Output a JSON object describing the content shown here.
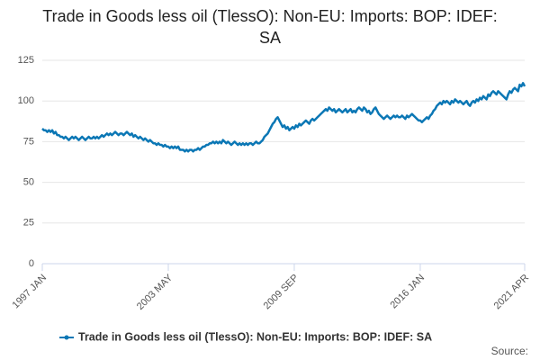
{
  "chart_data": {
    "type": "line",
    "title": "Trade in Goods less oil (TlessO): Non-EU: Imports: BOP: IDEF: SA",
    "source_label": "Source:",
    "categories": [
      "1997 JAN",
      null,
      null,
      null,
      null,
      null,
      null,
      null,
      null,
      null,
      null,
      null,
      null,
      null,
      null,
      null,
      null,
      null,
      null,
      null,
      null,
      null,
      null,
      null,
      null,
      null,
      null,
      null,
      null,
      null,
      null,
      null,
      null,
      null,
      null,
      null,
      null,
      null,
      null,
      null,
      null,
      null,
      null,
      null,
      null,
      null,
      null,
      null,
      null,
      null,
      null,
      null,
      null,
      null,
      null,
      null,
      null,
      null,
      null,
      null,
      null,
      null,
      null,
      null,
      null,
      null,
      null,
      null,
      null,
      null,
      null,
      null,
      null,
      null,
      null,
      null,
      "2003 MAY",
      null,
      null,
      null,
      null,
      null,
      null,
      null,
      null,
      null,
      null,
      null,
      null,
      null,
      null,
      null,
      null,
      null,
      null,
      null,
      null,
      null,
      null,
      null,
      null,
      null,
      null,
      null,
      null,
      null,
      null,
      null,
      null,
      null,
      null,
      null,
      null,
      null,
      null,
      null,
      null,
      null,
      null,
      null,
      null,
      null,
      null,
      null,
      null,
      null,
      null,
      null,
      null,
      null,
      null,
      null,
      null,
      null,
      null,
      null,
      null,
      null,
      null,
      null,
      null,
      null,
      null,
      null,
      null,
      null,
      null,
      null,
      null,
      null,
      null,
      null,
      "2009 SEP",
      null,
      null,
      null,
      null,
      null,
      null,
      null,
      null,
      null,
      null,
      null,
      null,
      null,
      null,
      null,
      null,
      null,
      null,
      null,
      null,
      null,
      null,
      null,
      null,
      null,
      null,
      null,
      null,
      null,
      null,
      null,
      null,
      null,
      null,
      null,
      null,
      null,
      null,
      null,
      null,
      null,
      null,
      null,
      null,
      null,
      null,
      null,
      null,
      null,
      null,
      null,
      null,
      null,
      null,
      null,
      null,
      null,
      null,
      null,
      null,
      null,
      null,
      null,
      null,
      null,
      null,
      null,
      null,
      null,
      null,
      null,
      null,
      null,
      null,
      null,
      "2016 JAN",
      null,
      null,
      null,
      null,
      null,
      null,
      null,
      null,
      null,
      null,
      null,
      null,
      null,
      null,
      null,
      null,
      null,
      null,
      null,
      null,
      null,
      null,
      null,
      null,
      null,
      null,
      null,
      null,
      null,
      null,
      null,
      null,
      null,
      null,
      null,
      null,
      null,
      null,
      null,
      null,
      null,
      null,
      null,
      null,
      null,
      null,
      null,
      null,
      null,
      null,
      null,
      null,
      null,
      null,
      null,
      null,
      null,
      null,
      null,
      null,
      null,
      null,
      "2021 APR"
    ],
    "series": [
      {
        "name": "Trade in Goods less oil (TlessO): Non-EU: Imports: BOP: IDEF: SA",
        "color": "#0b77b5",
        "values": [
          83,
          82,
          82,
          81,
          82,
          81,
          82,
          80,
          81,
          79,
          79,
          78,
          78,
          77,
          78,
          77,
          76,
          77,
          78,
          77,
          78,
          77,
          76,
          77,
          78,
          77,
          76,
          77,
          78,
          77,
          77,
          78,
          77,
          78,
          77,
          78,
          79,
          78,
          79,
          80,
          79,
          80,
          79,
          80,
          81,
          80,
          79,
          80,
          80,
          79,
          80,
          81,
          80,
          79,
          80,
          78,
          79,
          78,
          77,
          78,
          77,
          76,
          77,
          76,
          75,
          76,
          75,
          74,
          74,
          73,
          74,
          73,
          73,
          72,
          73,
          72,
          72,
          71,
          72,
          71,
          72,
          71,
          72,
          70,
          70,
          70,
          69,
          70,
          69,
          70,
          70,
          69,
          70,
          70,
          71,
          70,
          71,
          72,
          72,
          73,
          73,
          74,
          74,
          75,
          74,
          75,
          74,
          75,
          74,
          76,
          75,
          74,
          75,
          74,
          73,
          74,
          75,
          74,
          73,
          74,
          73,
          74,
          73,
          74,
          73,
          74,
          74,
          73,
          74,
          75,
          74,
          74,
          75,
          76,
          78,
          79,
          80,
          82,
          84,
          86,
          87,
          89,
          90,
          88,
          86,
          84,
          85,
          83,
          84,
          82,
          83,
          84,
          83,
          85,
          84,
          86,
          85,
          86,
          87,
          88,
          87,
          86,
          88,
          89,
          88,
          89,
          90,
          91,
          92,
          93,
          94,
          95,
          94,
          96,
          95,
          94,
          95,
          93,
          94,
          95,
          94,
          93,
          94,
          95,
          93,
          94,
          95,
          93,
          94,
          93,
          95,
          96,
          95,
          94,
          96,
          95,
          93,
          94,
          92,
          93,
          95,
          96,
          94,
          92,
          91,
          90,
          89,
          90,
          91,
          90,
          89,
          90,
          91,
          90,
          91,
          90,
          90,
          91,
          90,
          89,
          91,
          90,
          91,
          92,
          91,
          90,
          89,
          88,
          88,
          87,
          88,
          89,
          90,
          89,
          91,
          92,
          94,
          95,
          97,
          98,
          99,
          98,
          100,
          99,
          100,
          99,
          98,
          100,
          99,
          101,
          100,
          99,
          100,
          99,
          98,
          99,
          100,
          98,
          97,
          99,
          100,
          99,
          101,
          100,
          102,
          101,
          103,
          102,
          101,
          104,
          103,
          105,
          106,
          105,
          104,
          106,
          105,
          104,
          103,
          102,
          101,
          104,
          106,
          105,
          107,
          108,
          107,
          106,
          110,
          109,
          111,
          109
        ]
      }
    ],
    "ylim": [
      0,
      125
    ],
    "yticks": [
      0,
      25,
      50,
      75,
      100,
      125
    ],
    "grid": true,
    "legend": "bottom"
  }
}
